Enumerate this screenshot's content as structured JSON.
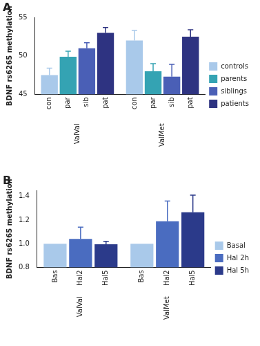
{
  "chart_data": [
    {
      "type": "bar",
      "title": "A",
      "ylabel": "BDNF rs6265 methylation",
      "categories": [
        "ValVal",
        "ValMet"
      ],
      "series": [
        {
          "name": "controls",
          "label": "con",
          "color": "#a9c9ea",
          "values": [
            47.5,
            52.0
          ],
          "errors": [
            0.9,
            1.3
          ]
        },
        {
          "name": "parents",
          "label": "par",
          "color": "#34a3b3",
          "values": [
            49.9,
            48.0
          ],
          "errors": [
            0.7,
            1.0
          ]
        },
        {
          "name": "siblings",
          "label": "sib",
          "color": "#4a5fb6",
          "values": [
            51.0,
            47.3
          ],
          "errors": [
            0.7,
            1.6
          ]
        },
        {
          "name": "patients",
          "label": "pat",
          "color": "#2e3381",
          "values": [
            53.0,
            52.5
          ],
          "errors": [
            0.7,
            0.9
          ]
        }
      ],
      "ylim": [
        45,
        55
      ],
      "yticks": [
        45,
        50,
        55
      ],
      "grid": false,
      "legend": "right"
    },
    {
      "type": "bar",
      "title": "B",
      "ylabel": "BDNF rs6265 methylation",
      "categories": [
        "ValVal",
        "ValMet"
      ],
      "series": [
        {
          "name": "Basal",
          "label": "Bas",
          "color": "#a9c9ea",
          "values": [
            1.0,
            1.0
          ],
          "errors": [
            null,
            null
          ]
        },
        {
          "name": "Hal 2h",
          "label": "Hal2",
          "color": "#4a6cc0",
          "values": [
            1.04,
            1.19
          ],
          "errors": [
            0.1,
            0.17
          ]
        },
        {
          "name": "Hal 5h",
          "label": "Hal5",
          "color": "#2b3a8a",
          "values": [
            0.995,
            1.265
          ],
          "errors": [
            0.025,
            0.145
          ]
        }
      ],
      "ylim": [
        0.8,
        1.45
      ],
      "yticks": [
        0.8,
        {
          "value": 1,
          "label": "1.0"
        },
        1.2,
        1.4
      ],
      "grid": false,
      "legend": "right"
    }
  ]
}
